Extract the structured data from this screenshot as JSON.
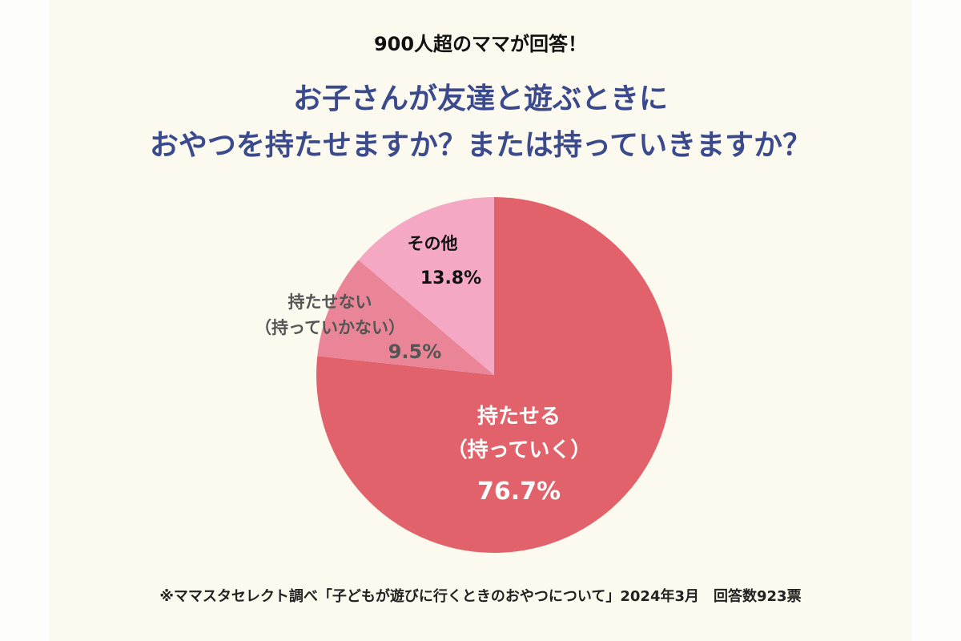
{
  "header": "900人超のママが回答！",
  "chart_data": {
    "type": "pie",
    "title": "お子さんが友達と遊ぶときに\nおやつを持たせますか？または持っていきますか？",
    "categories": [
      "持たせる\n（持っていく）",
      "持たせない\n（持っていかない）",
      "その他"
    ],
    "values": [
      76.7,
      9.5,
      13.8
    ],
    "value_labels": [
      "76.7%",
      "9.5%",
      "13.8%"
    ],
    "colors": [
      "#e1626a",
      "#ea8597",
      "#f5a8c4"
    ]
  },
  "footnote": "※ママスタセレクト調べ「子どもが遊びに行くときのおやつについて」2024年3月　回答数923票"
}
